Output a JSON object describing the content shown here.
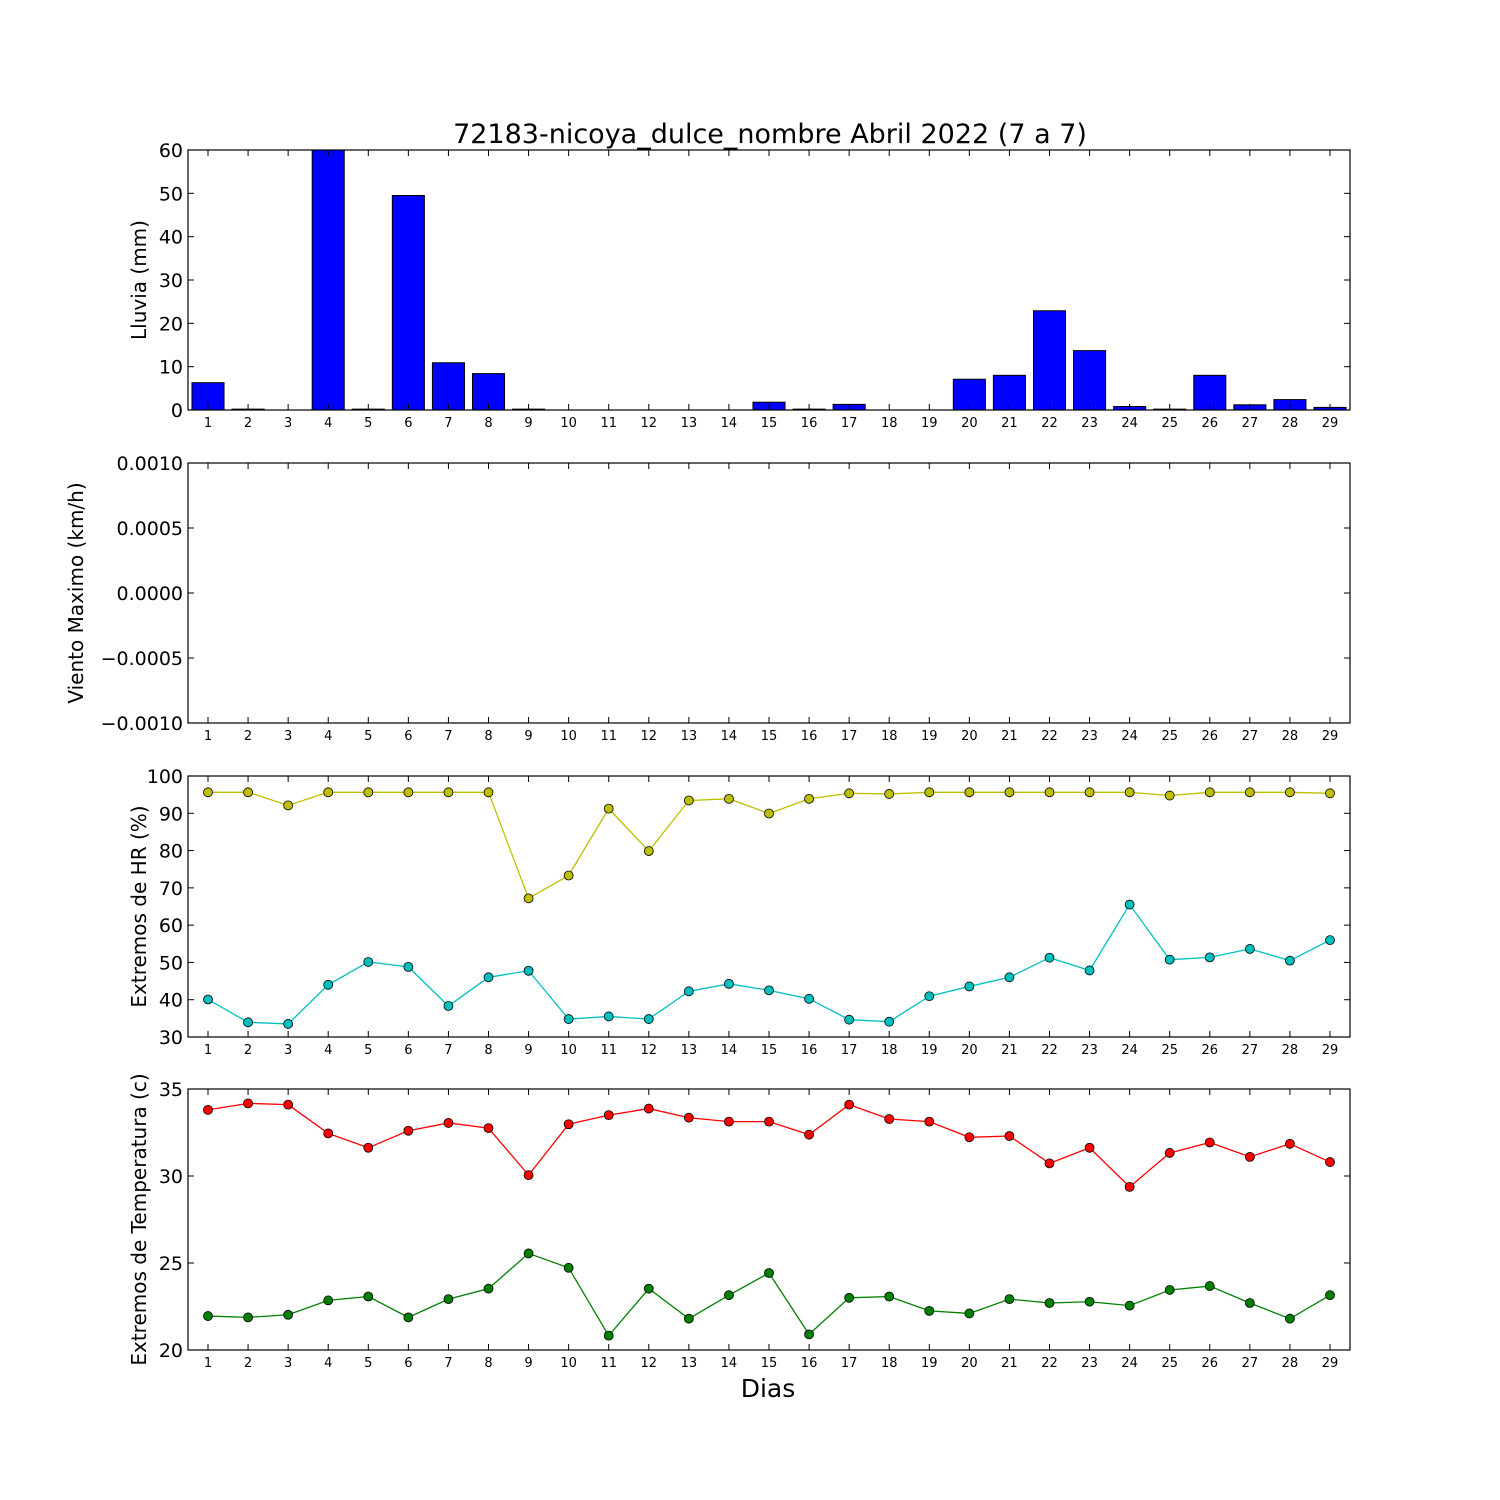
{
  "chart_data": [
    {
      "type": "bar",
      "title": "72183-nicoya_dulce_nombre Abril 2022  (7 a 7)",
      "ylabel": "Lluvia (mm)",
      "ylim": [
        0,
        60
      ],
      "yticks": [
        "0",
        "10",
        "20",
        "30",
        "40",
        "50",
        "60"
      ],
      "categories": [
        "1",
        "2",
        "3",
        "4",
        "5",
        "6",
        "7",
        "8",
        "9",
        "10",
        "11",
        "12",
        "13",
        "14",
        "15",
        "16",
        "17",
        "18",
        "19",
        "20",
        "21",
        "22",
        "23",
        "24",
        "25",
        "26",
        "27",
        "28",
        "29"
      ],
      "values": [
        6.3,
        0.2,
        0,
        60,
        0.2,
        49.5,
        10.9,
        8.4,
        0.2,
        0,
        0,
        0,
        0,
        0,
        1.8,
        0.2,
        1.3,
        0,
        0,
        7.1,
        8.0,
        22.9,
        13.7,
        0.8,
        0.2,
        8.0,
        1.2,
        2.4,
        0.6
      ],
      "color": "#0000ff"
    },
    {
      "type": "line",
      "ylabel": "Viento Maximo (km/h)",
      "ylim": [
        -0.001,
        0.001
      ],
      "yticks": [
        "−0.0010",
        "−0.0005",
        "0.0000",
        "0.0005",
        "0.0010"
      ],
      "categories": [
        "1",
        "2",
        "3",
        "4",
        "5",
        "6",
        "7",
        "8",
        "9",
        "10",
        "11",
        "12",
        "13",
        "14",
        "15",
        "16",
        "17",
        "18",
        "19",
        "20",
        "21",
        "22",
        "23",
        "24",
        "25",
        "26",
        "27",
        "28",
        "29"
      ],
      "series": []
    },
    {
      "type": "line",
      "ylabel": "Extremos de HR (%)",
      "ylim": [
        25,
        105
      ],
      "yticks": [
        "30",
        "40",
        "50",
        "60",
        "70",
        "80",
        "90",
        "100"
      ],
      "categories": [
        "1",
        "2",
        "3",
        "4",
        "5",
        "6",
        "7",
        "8",
        "9",
        "10",
        "11",
        "12",
        "13",
        "14",
        "15",
        "16",
        "17",
        "18",
        "19",
        "20",
        "21",
        "22",
        "23",
        "24",
        "25",
        "26",
        "27",
        "28",
        "29"
      ],
      "series": [
        {
          "color": "#bfbf00",
          "values": [
            100,
            100,
            96,
            100,
            100,
            100,
            100,
            100,
            67.5,
            74.5,
            95,
            82,
            97.5,
            98,
            93.5,
            98,
            99.7,
            99.5,
            100,
            100,
            100,
            100,
            100,
            100,
            99,
            100,
            100,
            100,
            99.7
          ]
        },
        {
          "color": "#00bfbf",
          "values": [
            36.5,
            29.5,
            29,
            41,
            48,
            46.5,
            34.5,
            43.3,
            45.3,
            30.5,
            31.3,
            30.5,
            39,
            41.3,
            39.3,
            36.7,
            30.3,
            29.7,
            37.5,
            40.5,
            43.3,
            49.3,
            45.4,
            65.6,
            48.7,
            49.4,
            52,
            48.4,
            54.7
          ]
        }
      ]
    },
    {
      "type": "line",
      "ylabel": "Extremos de Temperatura (c)",
      "xlabel": "Dias",
      "ylim": [
        17.5,
        37.5
      ],
      "yticks": [
        "20",
        "25",
        "30",
        "35"
      ],
      "categories": [
        "1",
        "2",
        "3",
        "4",
        "5",
        "6",
        "7",
        "8",
        "9",
        "10",
        "11",
        "12",
        "13",
        "14",
        "15",
        "16",
        "17",
        "18",
        "19",
        "20",
        "21",
        "22",
        "23",
        "24",
        "25",
        "26",
        "27",
        "28",
        "29"
      ],
      "series": [
        {
          "color": "#ff0000",
          "values": [
            35.9,
            36.4,
            36.3,
            34.1,
            33.0,
            34.3,
            34.9,
            34.5,
            30.9,
            34.8,
            35.5,
            36.0,
            35.3,
            35.0,
            35.0,
            34.0,
            36.3,
            35.2,
            35.0,
            33.8,
            33.9,
            31.8,
            33.0,
            30.0,
            32.6,
            33.4,
            32.3,
            33.3,
            31.9
          ]
        },
        {
          "color": "#008000",
          "values": [
            20.1,
            20.0,
            20.2,
            21.3,
            21.6,
            20.0,
            21.4,
            22.2,
            24.9,
            23.8,
            18.6,
            22.2,
            19.9,
            21.7,
            23.4,
            18.7,
            21.5,
            21.6,
            20.5,
            20.3,
            21.4,
            21.1,
            21.2,
            20.9,
            22.1,
            22.4,
            21.1,
            19.9,
            21.7
          ]
        }
      ]
    }
  ]
}
